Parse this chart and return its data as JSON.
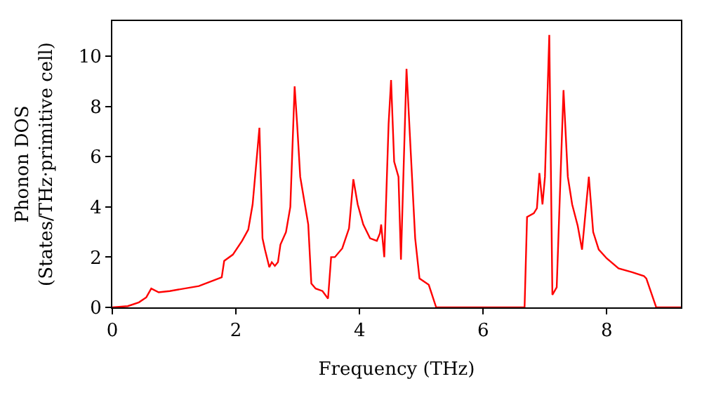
{
  "chart_data": {
    "type": "line",
    "xlabel": "Frequency (THz)",
    "ylabel": "Phonon DOS\n(States/THz·primitive cell)",
    "x": [
      0,
      0.25,
      0.43,
      0.55,
      0.63,
      0.75,
      0.93,
      1.4,
      1.77,
      1.81,
      1.95,
      2.1,
      2.2,
      2.27,
      2.38,
      2.43,
      2.47,
      2.54,
      2.58,
      2.63,
      2.68,
      2.72,
      2.81,
      2.88,
      2.95,
      2.99,
      3.04,
      3.17,
      3.22,
      3.29,
      3.4,
      3.49,
      3.54,
      3.6,
      3.72,
      3.83,
      3.9,
      3.97,
      4.06,
      4.17,
      4.28,
      4.33,
      4.35,
      4.4,
      4.47,
      4.51,
      4.56,
      4.63,
      4.67,
      4.76,
      4.83,
      4.9,
      4.97,
      5.12,
      5.24,
      6.67,
      6.71,
      6.82,
      6.87,
      6.91,
      6.96,
      7.0,
      7.07,
      7.12,
      7.19,
      7.3,
      7.37,
      7.44,
      7.53,
      7.6,
      7.71,
      7.78,
      7.87,
      8.0,
      8.19,
      8.41,
      8.6,
      8.64,
      8.8,
      9.2
    ],
    "series": [
      {
        "color": "#ff0000",
        "values": [
          0,
          0.05,
          0.2,
          0.4,
          0.75,
          0.6,
          0.65,
          0.85,
          1.2,
          1.85,
          2.1,
          2.65,
          3.1,
          4.1,
          7.15,
          2.75,
          2.3,
          1.6,
          1.8,
          1.65,
          1.8,
          2.5,
          3.0,
          4.0,
          8.8,
          7.3,
          5.2,
          3.3,
          0.95,
          0.75,
          0.65,
          0.35,
          2.0,
          2.0,
          2.35,
          3.15,
          5.1,
          4.1,
          3.3,
          2.75,
          2.65,
          2.95,
          3.3,
          2.0,
          7.3,
          9.05,
          5.8,
          5.2,
          1.9,
          9.5,
          6.1,
          2.75,
          1.15,
          0.9,
          0,
          0,
          3.6,
          3.75,
          3.95,
          5.35,
          4.1,
          5.2,
          10.85,
          0.5,
          0.8,
          8.65,
          5.2,
          4.1,
          3.25,
          2.3,
          5.2,
          3.0,
          2.3,
          1.95,
          1.55,
          1.4,
          1.25,
          1.15,
          0,
          0
        ]
      }
    ],
    "xlim": [
      0,
      9.2
    ],
    "ylim": [
      0,
      11.4
    ],
    "xticks": [
      0,
      2,
      4,
      6,
      8
    ],
    "yticks": [
      0,
      2,
      4,
      6,
      8,
      10
    ],
    "marker": "none",
    "line_style": "solid"
  }
}
